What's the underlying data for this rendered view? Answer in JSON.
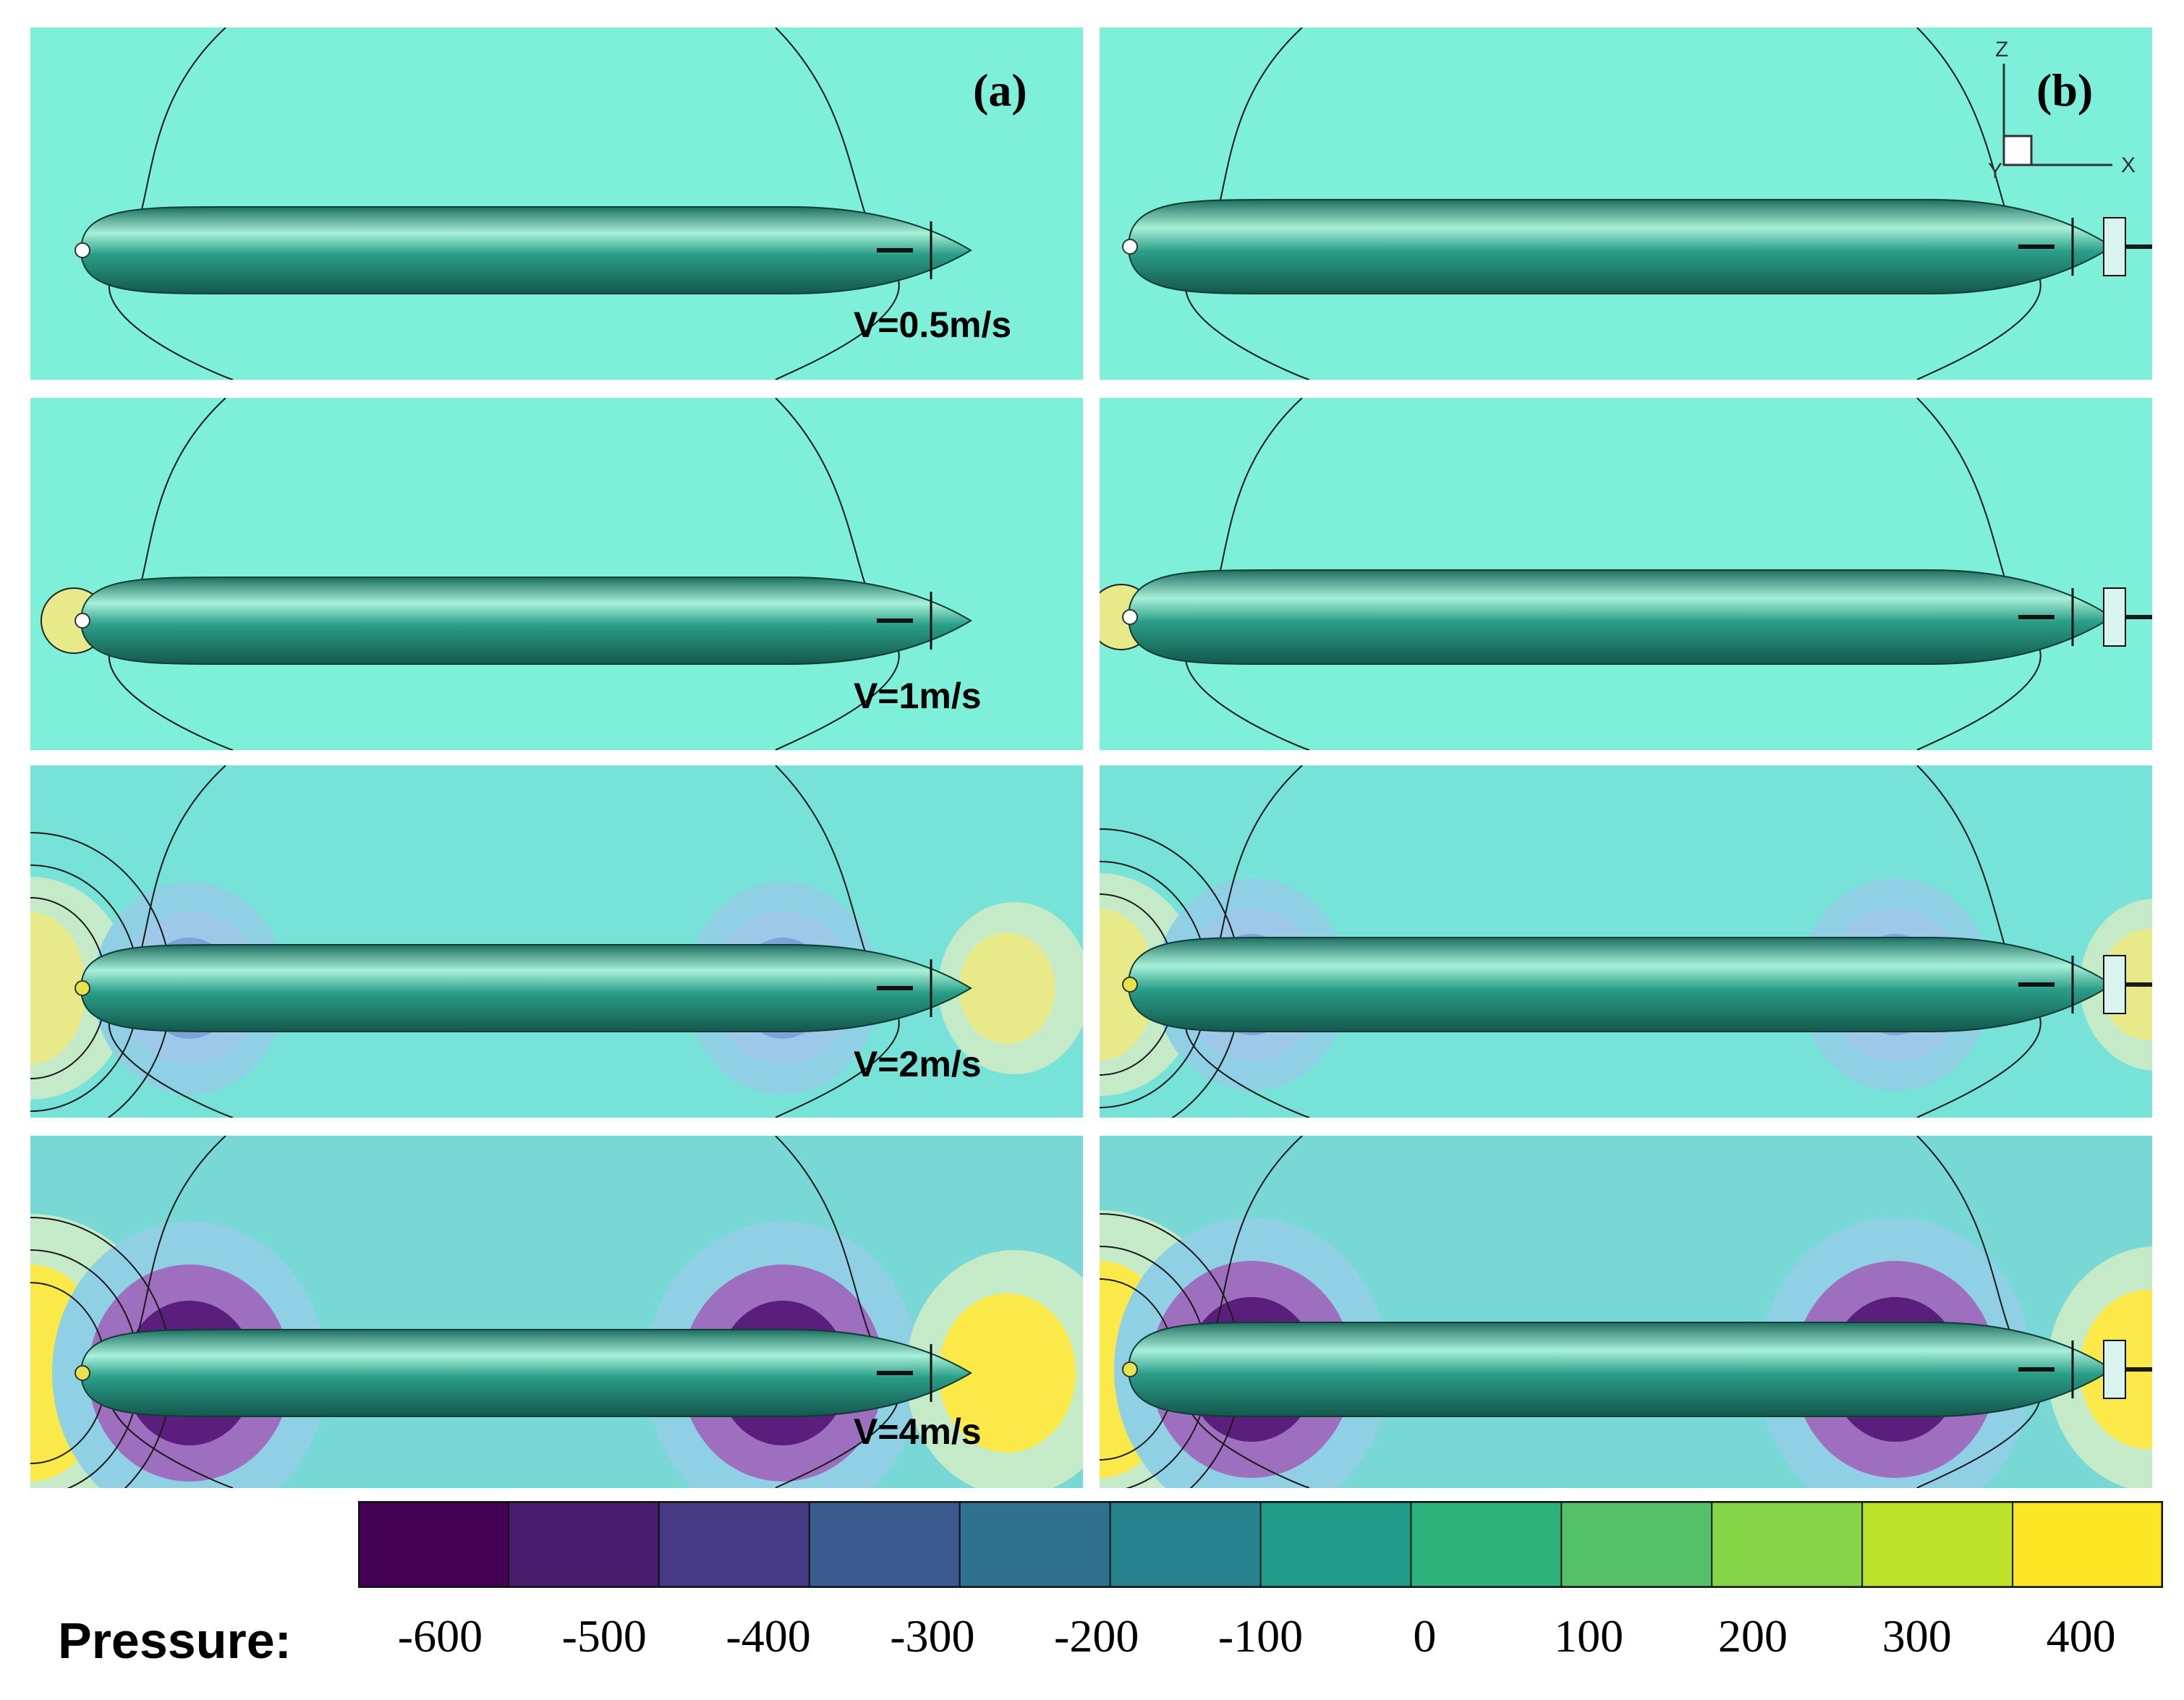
{
  "panel_labels": {
    "a": "(a)",
    "b": "(b)"
  },
  "speeds": [
    "V=0.5m/s",
    "V=1m/s",
    "V=2m/s",
    "V=4m/s"
  ],
  "speed_values_mps": [
    0.5,
    1,
    2,
    4
  ],
  "axis_triad": {
    "z": "Z",
    "x": "X",
    "y": "Y"
  },
  "colorbar": {
    "label": "Pressure:",
    "ticks": [
      "-600",
      "-500",
      "-400",
      "-300",
      "-200",
      "-100",
      "0",
      "100",
      "200",
      "300",
      "400"
    ],
    "range": [
      -650,
      450
    ],
    "colors": [
      "#440154",
      "#4a1c6e",
      "#463a84",
      "#3b5a8e",
      "#2f718e",
      "#26838d",
      "#1f9b88",
      "#2db27b",
      "#54c168",
      "#86d548",
      "#bde22a",
      "#fde725"
    ]
  },
  "colors": {
    "ambient": "#7eefd8",
    "hull": "#2a9e88",
    "hull_highlight": "#a8f0d8",
    "low_pressure": "#5a1f7c",
    "high_pressure": "#fbe94a"
  }
}
